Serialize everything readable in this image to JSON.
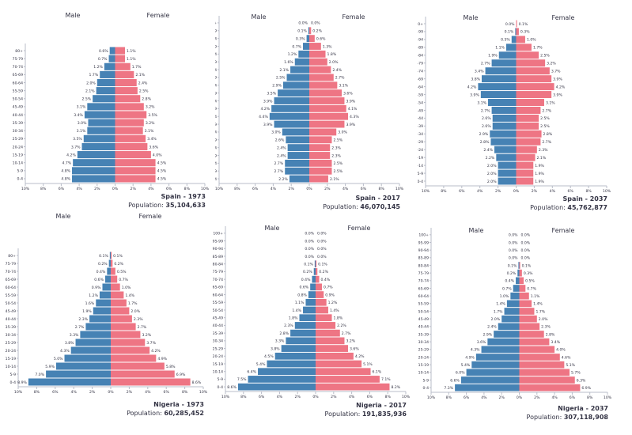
{
  "colors": {
    "male": "#4682b4",
    "female": "#ee7584",
    "axis": "#b8bcc8",
    "text": "#333344"
  },
  "chart_data": [
    {
      "type": "bar",
      "orientation": "horizontal-pyramid",
      "title": "Spain - 1973",
      "population_label": "Population:",
      "population": "35,104,633",
      "male_label": "Male",
      "female_label": "Female",
      "xlim": [
        -10,
        10
      ],
      "xticks": [
        "10%",
        "8%",
        "6%",
        "4%",
        "2%",
        "0%",
        "2%",
        "4%",
        "6%",
        "8%",
        "10%"
      ],
      "categories": [
        "80+",
        "75-79",
        "70-74",
        "65-69",
        "60-64",
        "55-59",
        "50-54",
        "45-49",
        "40-44",
        "35-39",
        "30-34",
        "25-29",
        "20-24",
        "15-19",
        "10-14",
        "5-9",
        "0-4"
      ],
      "series": [
        {
          "name": "Male",
          "values": [
            0.6,
            0.7,
            1.2,
            1.7,
            2.0,
            2.1,
            2.5,
            3.1,
            3.4,
            3.0,
            3.1,
            3.5,
            3.7,
            4.2,
            4.7,
            4.8,
            4.8
          ]
        },
        {
          "name": "Female",
          "values": [
            1.1,
            1.1,
            1.7,
            2.1,
            2.4,
            2.5,
            2.8,
            3.2,
            3.5,
            3.2,
            3.1,
            3.4,
            3.6,
            4.0,
            4.5,
            4.5,
            4.5
          ]
        }
      ]
    },
    {
      "type": "bar",
      "orientation": "horizontal-pyramid",
      "title": "Spain - 2017",
      "population_label": "Population:",
      "population": "46,070,145",
      "male_label": "Male",
      "female_label": "Female",
      "xlim": [
        -10,
        10
      ],
      "xticks": [
        "10%",
        "8%",
        "6%",
        "4%",
        "2%",
        "0%",
        "2%",
        "4%",
        "6%",
        "8%",
        "10%"
      ],
      "categories": [
        "100+",
        "95-99",
        "90-94",
        "85-89",
        "80-84",
        "75-79",
        "70-74",
        "65-69",
        "60-64",
        "55-59",
        "50-54",
        "45-49",
        "40-44",
        "35-39",
        "30-34",
        "25-29",
        "20-24",
        "15-19",
        "10-14",
        "5-9",
        "0-4"
      ],
      "series": [
        {
          "name": "Male",
          "values": [
            0.0,
            0.1,
            0.3,
            0.7,
            1.2,
            1.6,
            2.1,
            2.5,
            2.9,
            3.5,
            3.9,
            4.2,
            4.4,
            3.9,
            3.0,
            2.6,
            2.4,
            2.4,
            2.7,
            2.7,
            2.2
          ]
        },
        {
          "name": "Female",
          "values": [
            0.0,
            0.2,
            0.6,
            1.3,
            1.8,
            2.0,
            2.4,
            2.7,
            3.1,
            3.6,
            3.9,
            4.1,
            4.3,
            3.9,
            3.0,
            2.5,
            2.3,
            2.3,
            2.5,
            2.5,
            2.1
          ]
        }
      ]
    },
    {
      "type": "bar",
      "orientation": "horizontal-pyramid",
      "title": "Spain - 2037",
      "population_label": "Population:",
      "population": "45,762,877",
      "male_label": "Male",
      "female_label": "Female",
      "xlim": [
        -10,
        10
      ],
      "xticks": [
        "10%",
        "8%",
        "6%",
        "4%",
        "2%",
        "0%",
        "2%",
        "4%",
        "6%",
        "8%",
        "10%"
      ],
      "categories": [
        "100+",
        "95-99",
        "90-94",
        "85-89",
        "80-84",
        "75-79",
        "70-74",
        "65-69",
        "60-64",
        "55-59",
        "50-54",
        "45-49",
        "40-44",
        "35-39",
        "30-34",
        "25-29",
        "20-24",
        "15-19",
        "10-14",
        "5-9",
        "0-4"
      ],
      "series": [
        {
          "name": "Male",
          "values": [
            0.0,
            0.1,
            0.5,
            1.1,
            1.9,
            2.7,
            3.4,
            3.8,
            4.2,
            3.9,
            3.1,
            2.7,
            2.6,
            2.6,
            2.9,
            2.8,
            2.4,
            2.2,
            2.0,
            2.0,
            2.0
          ]
        },
        {
          "name": "Female",
          "values": [
            0.1,
            0.3,
            1.0,
            1.7,
            2.5,
            3.2,
            3.7,
            3.9,
            4.2,
            3.9,
            3.1,
            2.7,
            2.5,
            2.5,
            2.8,
            2.7,
            2.3,
            2.1,
            1.9,
            1.9,
            1.9
          ]
        }
      ]
    },
    {
      "type": "bar",
      "orientation": "horizontal-pyramid",
      "title": "Nigeria - 1973",
      "population_label": "Population:",
      "population": "60,285,452",
      "male_label": "Male",
      "female_label": "Female",
      "xlim": [
        -10,
        10
      ],
      "xticks": [
        "10%",
        "8%",
        "6%",
        "4%",
        "2%",
        "0%",
        "2%",
        "4%",
        "6%",
        "8%",
        "10%"
      ],
      "categories": [
        "80+",
        "75-79",
        "70-74",
        "65-69",
        "60-64",
        "55-59",
        "50-54",
        "45-49",
        "40-44",
        "35-39",
        "30-34",
        "25-29",
        "20-24",
        "15-19",
        "10-14",
        "5-9",
        "0-4"
      ],
      "series": [
        {
          "name": "Male",
          "values": [
            0.1,
            0.2,
            0.4,
            0.6,
            0.9,
            1.2,
            1.6,
            1.9,
            2.3,
            2.7,
            3.3,
            3.8,
            4.3,
            5.0,
            5.9,
            7.0,
            8.9
          ]
        },
        {
          "name": "Female",
          "values": [
            0.1,
            0.2,
            0.5,
            0.7,
            1.0,
            1.4,
            1.7,
            2.0,
            2.3,
            2.7,
            3.2,
            3.7,
            4.2,
            4.9,
            5.8,
            6.9,
            8.6
          ]
        }
      ]
    },
    {
      "type": "bar",
      "orientation": "horizontal-pyramid",
      "title": "Nigeria - 2017",
      "population_label": "Population:",
      "population": "191,835,936",
      "male_label": "Male",
      "female_label": "Female",
      "xlim": [
        -10,
        10
      ],
      "xticks": [
        "10%",
        "8%",
        "6%",
        "4%",
        "2%",
        "0%",
        "2%",
        "4%",
        "6%",
        "8%",
        "10%"
      ],
      "categories": [
        "100+",
        "95-99",
        "90-94",
        "85-89",
        "80-84",
        "75-79",
        "70-74",
        "65-69",
        "60-64",
        "55-59",
        "50-54",
        "45-49",
        "40-44",
        "35-39",
        "30-34",
        "25-29",
        "20-24",
        "15-19",
        "10-14",
        "5-9",
        "0-4"
      ],
      "series": [
        {
          "name": "Male",
          "values": [
            0.0,
            0.0,
            0.0,
            0.0,
            0.1,
            0.2,
            0.4,
            0.6,
            0.8,
            1.1,
            1.4,
            1.8,
            2.3,
            2.8,
            3.3,
            3.8,
            4.5,
            5.4,
            6.4,
            7.5,
            8.6
          ]
        },
        {
          "name": "Female",
          "values": [
            0.0,
            0.0,
            0.0,
            0.0,
            0.1,
            0.2,
            0.4,
            0.7,
            0.9,
            1.2,
            1.4,
            1.8,
            2.2,
            2.7,
            3.2,
            3.6,
            4.2,
            5.1,
            6.1,
            7.1,
            8.2
          ]
        }
      ]
    },
    {
      "type": "bar",
      "orientation": "horizontal-pyramid",
      "title": "Nigeria - 2037",
      "population_label": "Population:",
      "population": "307,118,908",
      "male_label": "Male",
      "female_label": "Female",
      "xlim": [
        -10,
        10
      ],
      "xticks": [
        "10%",
        "8%",
        "6%",
        "4%",
        "2%",
        "0%",
        "2%",
        "4%",
        "6%",
        "8%",
        "10%"
      ],
      "categories": [
        "100+",
        "95-99",
        "90-94",
        "85-89",
        "80-84",
        "75-79",
        "70-74",
        "65-69",
        "60-64",
        "55-59",
        "50-54",
        "45-49",
        "40-44",
        "35-39",
        "30-34",
        "25-29",
        "20-24",
        "15-19",
        "10-14",
        "5-9",
        "0-4"
      ],
      "series": [
        {
          "name": "Male",
          "values": [
            0.0,
            0.0,
            0.0,
            0.0,
            0.1,
            0.2,
            0.4,
            0.7,
            1.0,
            1.4,
            1.7,
            2.0,
            2.4,
            2.9,
            3.6,
            4.3,
            4.9,
            5.4,
            6.0,
            6.6,
            7.3
          ]
        },
        {
          "name": "Female",
          "values": [
            0.0,
            0.0,
            0.0,
            0.0,
            0.1,
            0.3,
            0.5,
            0.7,
            1.1,
            1.4,
            1.7,
            2.0,
            2.3,
            2.8,
            3.4,
            4.0,
            4.6,
            5.1,
            5.7,
            6.3,
            6.9
          ]
        }
      ]
    }
  ]
}
